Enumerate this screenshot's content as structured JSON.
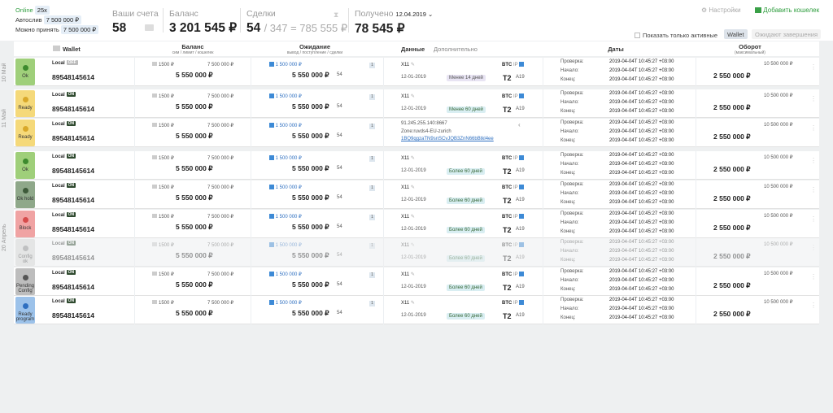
{
  "top": {
    "online_label": "Online",
    "online_count": "25x",
    "autosliv_label": "Автослив",
    "autosliv_value": "7 500 000 ₽",
    "can_accept_label": "Можно принять",
    "can_accept_value": "7 500 000 ₽",
    "accounts_label": "Ваши счета",
    "accounts_value": "58",
    "balance_label": "Баланс",
    "balance_value": "3 201 545 ₽",
    "deals_label": "Сделки",
    "deals_value": "54",
    "deals_extra": "/ 347 = 785 555 ₽",
    "received_label": "Получено",
    "received_date": "12.04.2019",
    "received_value": "78 545 ₽",
    "settings_label": "Настройки",
    "add_wallet_label": "Добавить кошелек",
    "only_active_label": "Показать только активные",
    "wallet_toggle": "Wallet",
    "waiting_toggle": "Ожидают завершения"
  },
  "header": {
    "wallet": "Wallet",
    "balance": "Баланс",
    "balance_sub": "сим / лимит / кошелек",
    "waiting": "Ожидание",
    "waiting_sub": "вывод / поступление / сделки",
    "data": "Данные",
    "extra": "Дополнительно",
    "dates": "Даты",
    "turnover": "Оборот",
    "turnover_sub": "(максимальный)"
  },
  "group_labels": [
    "10 Май",
    "11 Май",
    "20 Апрель"
  ],
  "rows": [
    {
      "status": "Ok",
      "local": "Local",
      "badge": "OFF",
      "phone": "89548145614",
      "sim": "1500 ₽",
      "limit": "7 500 000 ₽",
      "wallet": "5 550 000 ₽",
      "wait_out": "1 500 000 ₽",
      "wait_num": "1",
      "wait_total": "5 550 000 ₽",
      "deals": "54",
      "x": "X11",
      "date": "12-01-2019",
      "pill": "Менее 14 дней",
      "btc": "BTC",
      "ip": "IP",
      "a": "A19",
      "check_label": "Проверка:",
      "start_label": "Начало:",
      "end_label": "Конец:",
      "d1": "2019-04-04T 10:45:27 +03:00",
      "d2": "2019-04-04T 10:45:27 +03:00",
      "d3": "2019-04-04T 10:45:27 +03:00",
      "turn_max": "10 500 000 ₽",
      "turn": "2 550 000 ₽"
    },
    {
      "status": "Ready",
      "local": "Local",
      "badge": "ON",
      "phone": "89548145614",
      "sim": "1500 ₽",
      "limit": "7 500 000 ₽",
      "wallet": "5 550 000 ₽",
      "wait_out": "1 500 000 ₽",
      "wait_num": "1",
      "wait_total": "5 550 000 ₽",
      "deals": "54",
      "x": "X11",
      "date": "12-01-2019",
      "pill": "Менее 60 дней",
      "btc": "BTC",
      "ip": "IP",
      "a": "A19",
      "check_label": "Проверка:",
      "start_label": "Начало:",
      "end_label": "Конец:",
      "d1": "2019-04-04T 10:45:27 +03:00",
      "d2": "2019-04-04T 10:45:27 +03:00",
      "d3": "2019-04-04T 10:45:27 +03:00",
      "turn_max": "10 500 000 ₽",
      "turn": "2 550 000 ₽"
    },
    {
      "status": "Ready",
      "local": "Local",
      "badge": "ON",
      "phone": "89548145614",
      "sim": "1500 ₽",
      "limit": "7 500 000 ₽",
      "wallet": "5 550 000 ₽",
      "wait_out": "1 500 000 ₽",
      "wait_num": "1",
      "wait_total": "5 550 000 ₽",
      "deals": "54",
      "ipaddr": "91.245.255.140:8667",
      "zone": "Zone:ruvds4-EU-zurich",
      "hash": "1BQ9qgzaTN9snSCvJQB3ZnN66bBtkl4ee",
      "check_label": "Проверка:",
      "start_label": "Начало:",
      "end_label": "Конец:",
      "d1": "2019-04-04T 10:45:27 +03:00",
      "d2": "2019-04-04T 10:45:27 +03:00",
      "d3": "2019-04-04T 10:45:27 +03:00",
      "turn_max": "10 500 000 ₽",
      "turn": "2 550 000 ₽"
    },
    {
      "status": "Ok",
      "local": "Local",
      "badge": "ON",
      "phone": "89548145614",
      "sim": "1500 ₽",
      "limit": "7 500 000 ₽",
      "wallet": "5 550 000 ₽",
      "wait_out": "1 500 000 ₽",
      "wait_num": "1",
      "wait_total": "5 550 000 ₽",
      "deals": "54",
      "x": "X11",
      "date": "12-01-2019",
      "pill": "Более 60 дней",
      "btc": "BTC",
      "ip": "IP",
      "a": "A19",
      "check_label": "Проверка:",
      "start_label": "Начало:",
      "end_label": "Конец:",
      "d1": "2019-04-04T 10:45:27 +03:00",
      "d2": "2019-04-04T 10:45:27 +03:00",
      "d3": "2019-04-04T 10:45:27 +03:00",
      "turn_max": "10 500 000 ₽",
      "turn": "2 550 000 ₽"
    },
    {
      "status": "Ok hold",
      "local": "Local",
      "badge": "ON",
      "phone": "89548145614",
      "sim": "1500 ₽",
      "limit": "7 500 000 ₽",
      "wallet": "5 550 000 ₽",
      "wait_out": "1 500 000 ₽",
      "wait_num": "1",
      "wait_total": "5 550 000 ₽",
      "deals": "54",
      "x": "X11",
      "date": "12-01-2019",
      "pill": "Более 60 дней",
      "btc": "BTC",
      "ip": "IP",
      "a": "A19",
      "check_label": "Проверка:",
      "start_label": "Начало:",
      "end_label": "Конец:",
      "d1": "2019-04-04T 10:45:27 +03:00",
      "d2": "2019-04-04T 10:45:27 +03:00",
      "d3": "2019-04-04T 10:45:27 +03:00",
      "turn_max": "10 500 000 ₽",
      "turn": "2 550 000 ₽"
    },
    {
      "status": "Block",
      "local": "Local",
      "badge": "ON",
      "phone": "89548145614",
      "sim": "1500 ₽",
      "limit": "7 500 000 ₽",
      "wallet": "5 550 000 ₽",
      "wait_out": "1 500 000 ₽",
      "wait_num": "1",
      "wait_total": "5 550 000 ₽",
      "deals": "54",
      "x": "X11",
      "date": "12-01-2019",
      "pill": "Более 60 дней",
      "btc": "BTC",
      "ip": "IP",
      "a": "A19",
      "check_label": "Проверка:",
      "start_label": "Начало:",
      "end_label": "Конец:",
      "d1": "2019-04-04T 10:45:27 +03:00",
      "d2": "2019-04-04T 10:45:27 +03:00",
      "d3": "2019-04-04T 10:45:27 +03:00",
      "turn_max": "10 500 000 ₽",
      "turn": "2 550 000 ₽"
    },
    {
      "status": "Config ok",
      "local": "Local",
      "badge": "ON",
      "phone": "89548145614",
      "sim": "1500 ₽",
      "limit": "7 500 000 ₽",
      "wallet": "5 550 000 ₽",
      "wait_out": "1 500 000 ₽",
      "wait_num": "1",
      "wait_total": "5 550 000 ₽",
      "deals": "54",
      "x": "X11",
      "date": "12-01-2019",
      "pill": "Более 60 дней",
      "btc": "BTC",
      "ip": "IP",
      "a": "A19",
      "check_label": "Проверка:",
      "start_label": "Начало:",
      "end_label": "Конец:",
      "d1": "2019-04-04T 10:45:27 +03:00",
      "d2": "2019-04-04T 10:45:27 +03:00",
      "d3": "2019-04-04T 10:45:27 +03:00",
      "turn_max": "10 500 000 ₽",
      "turn": "2 550 000 ₽"
    },
    {
      "status": "Pending Config",
      "local": "Local",
      "badge": "ON",
      "phone": "89548145614",
      "sim": "1500 ₽",
      "limit": "7 500 000 ₽",
      "wallet": "5 550 000 ₽",
      "wait_out": "1 500 000 ₽",
      "wait_num": "1",
      "wait_total": "5 550 000 ₽",
      "deals": "54",
      "x": "X11",
      "date": "12-01-2019",
      "pill": "Более 60 дней",
      "btc": "BTC",
      "ip": "IP",
      "a": "A19",
      "check_label": "Проверка:",
      "start_label": "Начало:",
      "end_label": "Конец:",
      "d1": "2019-04-04T 10:45:27 +03:00",
      "d2": "2019-04-04T 10:45:27 +03:00",
      "d3": "2019-04-04T 10:45:27 +03:00",
      "turn_max": "10 500 000 ₽",
      "turn": "2 550 000 ₽"
    },
    {
      "status": "Ready program",
      "local": "Local",
      "badge": "ON",
      "phone": "89548145614",
      "sim": "1500 ₽",
      "limit": "7 500 000 ₽",
      "wallet": "5 550 000 ₽",
      "wait_out": "1 500 000 ₽",
      "wait_num": "1",
      "wait_total": "5 550 000 ₽",
      "deals": "54",
      "x": "X11",
      "date": "12-01-2019",
      "pill": "Более 60 дней",
      "btc": "BTC",
      "ip": "IP",
      "a": "A19",
      "check_label": "Проверка:",
      "start_label": "Начало:",
      "end_label": "Конец:",
      "d1": "2019-04-04T 10:45:27 +03:00",
      "d2": "2019-04-04T 10:45:27 +03:00",
      "d3": "2019-04-04T 10:45:27 +03:00",
      "turn_max": "10 500 000 ₽",
      "turn": "2 550 000 ₽"
    }
  ],
  "status_colors": {
    "Ok": "#9fcf7a",
    "Ready": "#f5d97a",
    "Ok hold": "#8fa88a",
    "Block": "#f0a3a3",
    "Config ok": "#d8d8d8",
    "Pending Config": "#bdbdbd",
    "Ready program": "#9cc2ea"
  },
  "status_dot": {
    "Ok": "#3d8a2e",
    "Ready": "#d9a82a",
    "Ok hold": "#3e5a3a",
    "Block": "#d64b4b",
    "Config ok": "#888",
    "Pending Config": "#555",
    "Ready program": "#2e6fc0"
  }
}
